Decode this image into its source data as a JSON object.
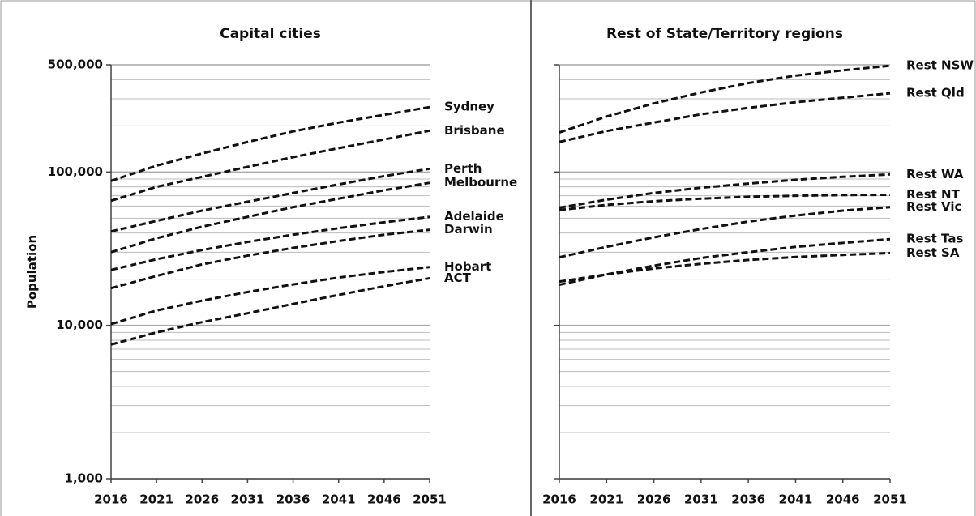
{
  "chart_data": [
    {
      "type": "line",
      "title": "Capital cities",
      "ylabel": "Population",
      "log_y": true,
      "grid": true,
      "minor_grid": true,
      "show_ytick_labels": true,
      "x": [
        2016,
        2021,
        2026,
        2031,
        2036,
        2041,
        2046,
        2051
      ],
      "xlim": [
        2016,
        2051
      ],
      "xticks": [
        2016,
        2021,
        2026,
        2031,
        2036,
        2041,
        2046,
        2051
      ],
      "ylim": [
        1000,
        500000
      ],
      "yticks": [
        {
          "value": 1000,
          "label": "1,000"
        },
        {
          "value": 10000,
          "label": "10,000"
        },
        {
          "value": 100000,
          "label": "100,000"
        },
        {
          "value": 500000,
          "label": "500,000"
        }
      ],
      "series": [
        {
          "name": "Sydney",
          "color": "#111111",
          "values": [
            87500,
            110000,
            132000,
            157000,
            184000,
            210000,
            236000,
            265000
          ]
        },
        {
          "name": "Brisbane",
          "color": "#111111",
          "values": [
            65000,
            80000,
            93000,
            108000,
            125000,
            143000,
            163000,
            186000
          ]
        },
        {
          "name": "Perth",
          "color": "#111111",
          "values": [
            41000,
            48000,
            56000,
            64000,
            73000,
            83000,
            94000,
            105000
          ]
        },
        {
          "name": "Melbourne",
          "color": "#111111",
          "values": [
            30000,
            37000,
            44000,
            51000,
            59000,
            67000,
            76000,
            85000
          ]
        },
        {
          "name": "Adelaide",
          "color": "#111111",
          "values": [
            23000,
            27000,
            31000,
            35000,
            39000,
            43000,
            47000,
            51000
          ]
        },
        {
          "name": "Darwin",
          "color": "#111111",
          "values": [
            17500,
            21000,
            25000,
            28500,
            32000,
            35500,
            39000,
            42000
          ]
        },
        {
          "name": "Hobart",
          "color": "#111111",
          "values": [
            10200,
            12500,
            14500,
            16500,
            18500,
            20500,
            22300,
            24000
          ]
        },
        {
          "name": "ACT",
          "color": "#111111",
          "values": [
            7500,
            9000,
            10500,
            12000,
            13800,
            15800,
            18000,
            20300
          ]
        }
      ]
    },
    {
      "type": "line",
      "title": "Rest of State/Territory regions",
      "log_y": true,
      "grid": true,
      "minor_grid": true,
      "show_ytick_labels": false,
      "x": [
        2016,
        2021,
        2026,
        2031,
        2036,
        2041,
        2046,
        2051
      ],
      "xlim": [
        2016,
        2051
      ],
      "xticks": [
        2016,
        2021,
        2026,
        2031,
        2036,
        2041,
        2046,
        2051
      ],
      "ylim": [
        1000,
        500000
      ],
      "yticks": [
        1000,
        10000,
        100000,
        500000
      ],
      "series": [
        {
          "name": "Rest NSW",
          "color": "#111111",
          "values": [
            181000,
            230000,
            280000,
            330000,
            380000,
            425000,
            460000,
            493000
          ]
        },
        {
          "name": "Rest Qld",
          "color": "#111111",
          "values": [
            157000,
            185000,
            210000,
            238000,
            262000,
            285000,
            305000,
            326000
          ]
        },
        {
          "name": "Rest WA",
          "color": "#111111",
          "values": [
            58500,
            66000,
            73000,
            79000,
            84000,
            89000,
            93000,
            96500
          ]
        },
        {
          "name": "Rest NT",
          "color": "#111111",
          "values": [
            56500,
            61000,
            64500,
            67000,
            69000,
            70000,
            70800,
            71000
          ]
        },
        {
          "name": "Rest Vic",
          "color": "#111111",
          "values": [
            27800,
            32500,
            37500,
            42500,
            47500,
            52000,
            56000,
            59000
          ]
        },
        {
          "name": "Rest Tas",
          "color": "#111111",
          "values": [
            18400,
            21500,
            24500,
            27500,
            30000,
            32500,
            34500,
            36500
          ]
        },
        {
          "name": "Rest SA",
          "color": "#111111",
          "values": [
            19300,
            21500,
            23500,
            25200,
            26700,
            27900,
            28800,
            29600
          ]
        }
      ]
    }
  ]
}
